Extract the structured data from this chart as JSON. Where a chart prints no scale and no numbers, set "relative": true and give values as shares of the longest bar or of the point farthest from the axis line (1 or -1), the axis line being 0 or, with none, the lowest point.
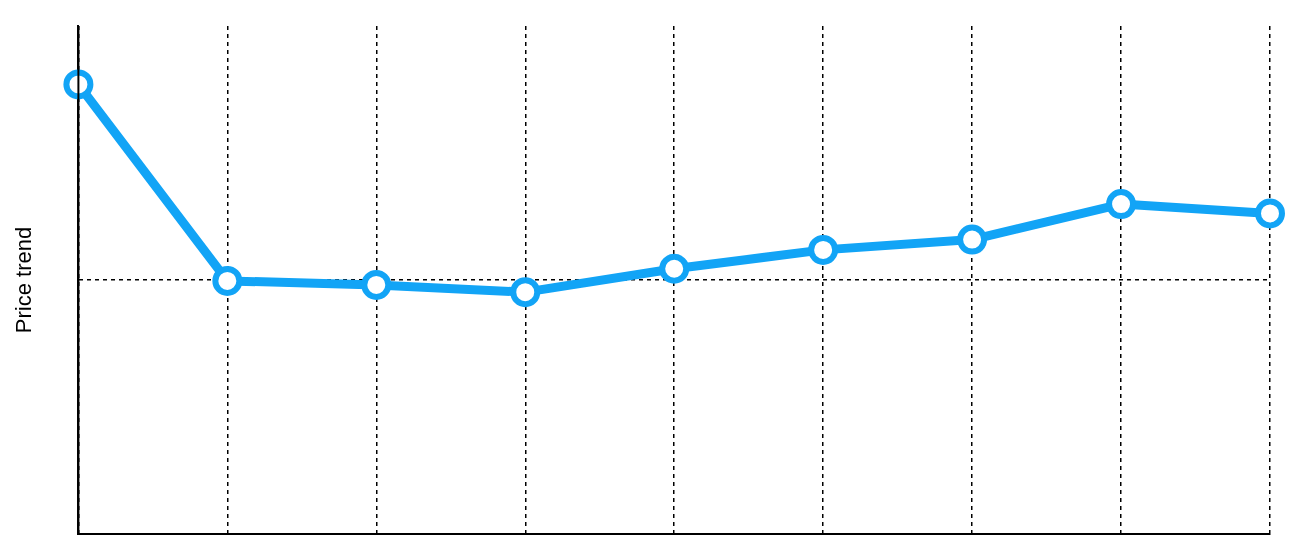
{
  "chart_data": {
    "type": "line",
    "ylabel": "Price trend",
    "relative": true,
    "categories": [
      null,
      null,
      null,
      null,
      null,
      null,
      null,
      null,
      null
    ],
    "series": [
      {
        "color": "#12a4f6",
        "values": [
          1,
          0.563,
          0.554,
          0.538,
          0.59,
          0.632,
          0.655,
          0.734,
          0.713
        ]
      }
    ],
    "grid": true,
    "legend": false,
    "marker": "circle",
    "line_style": "solid"
  }
}
